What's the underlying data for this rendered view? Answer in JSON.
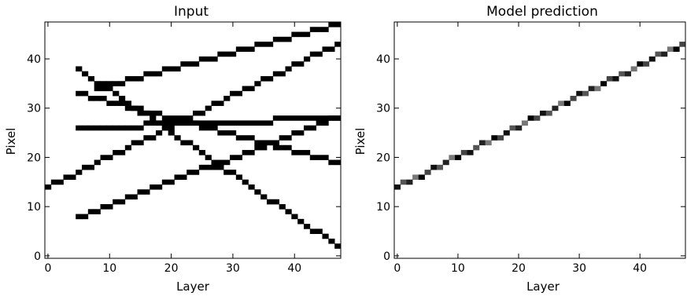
{
  "chart_data": [
    {
      "type": "heatmap",
      "title": "Input",
      "xlabel": "Layer",
      "ylabel": "Pixel",
      "xlim": [
        -0.5,
        47.5
      ],
      "ylim": [
        -0.5,
        47.5
      ],
      "xticks": [
        0,
        10,
        20,
        30,
        40
      ],
      "yticks": [
        0,
        10,
        20,
        30,
        40
      ],
      "colormap": "binary",
      "tracks": [
        {
          "x_start": 0,
          "x_end": 47,
          "y_start": 14,
          "y_end": 43
        },
        {
          "x_start": 5,
          "x_end": 47,
          "y_start": 8,
          "y_end": 28
        },
        {
          "x_start": 5,
          "x_end": 47,
          "y_start": 33,
          "y_end": 19
        },
        {
          "x_start": 5,
          "x_end": 47,
          "y_start": 38,
          "y_end": 2
        },
        {
          "x_start": 8,
          "x_end": 47,
          "y_start": 34,
          "y_end": 47
        },
        {
          "x_start": 5,
          "x_end": 47,
          "y_start": 26,
          "y_end": 28
        }
      ]
    },
    {
      "type": "heatmap",
      "title": "Model prediction",
      "xlabel": "Layer",
      "ylabel": "Pixel",
      "xlim": [
        -0.5,
        47.5
      ],
      "ylim": [
        -0.5,
        47.5
      ],
      "xticks": [
        0,
        10,
        20,
        30,
        40
      ],
      "yticks": [
        0,
        10,
        20,
        30,
        40
      ],
      "colormap": "binary",
      "tracks": [
        {
          "x_start": 0,
          "x_end": 47,
          "y_start": 14,
          "y_end": 43
        }
      ]
    }
  ]
}
